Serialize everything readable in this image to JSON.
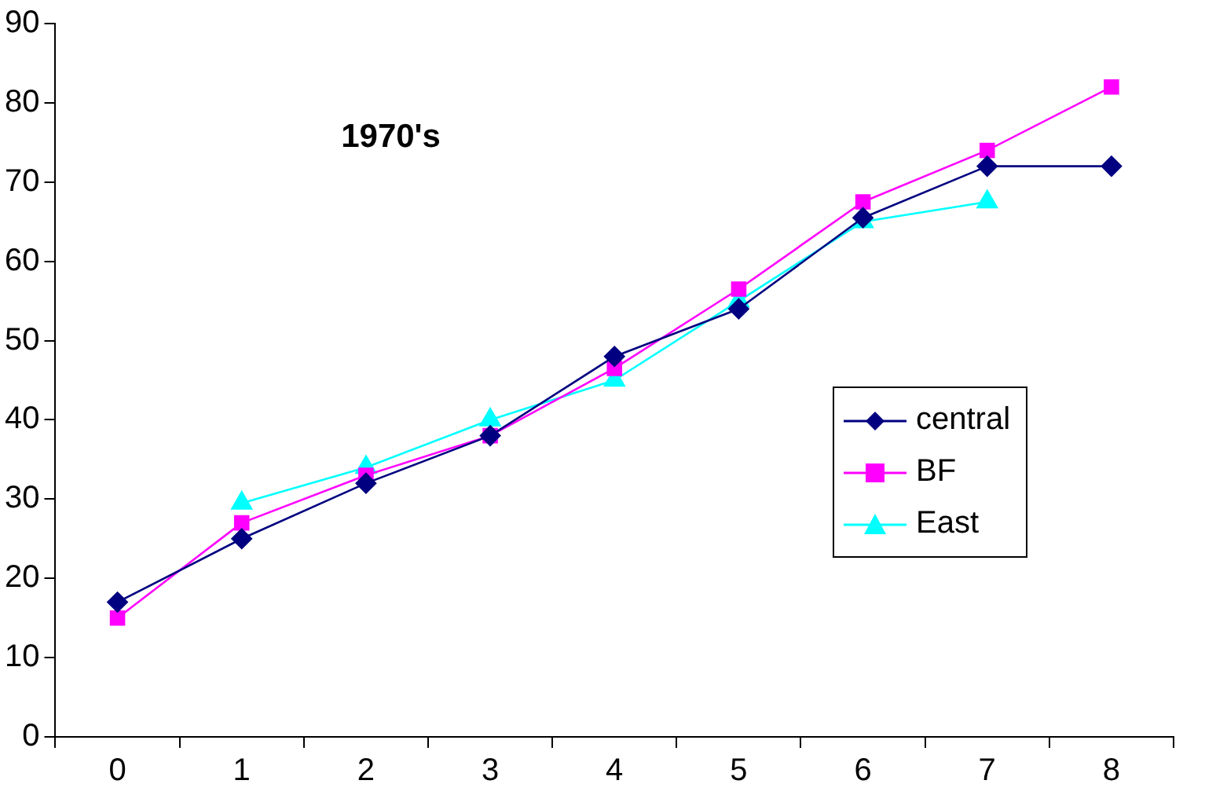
{
  "chart_data": {
    "type": "line",
    "title": "1970's",
    "categories": [
      "0",
      "1",
      "2",
      "3",
      "4",
      "5",
      "6",
      "7",
      "8"
    ],
    "series": [
      {
        "name": "central",
        "color": "#000080",
        "marker": "diamond",
        "values": [
          17,
          25,
          32,
          38,
          48,
          54,
          65.5,
          72,
          72
        ]
      },
      {
        "name": "BF",
        "color": "#ff00ff",
        "marker": "square",
        "values": [
          15,
          27,
          33,
          38,
          46.5,
          56.5,
          67.5,
          74,
          82
        ]
      },
      {
        "name": "East",
        "color": "#00ffff",
        "marker": "triangle",
        "values": [
          null,
          29.5,
          34,
          40,
          45,
          55,
          65,
          67.5,
          null
        ]
      }
    ],
    "ylim": [
      0,
      90
    ],
    "yticks": [
      0,
      10,
      20,
      30,
      40,
      50,
      60,
      70,
      80,
      90
    ],
    "grid": false,
    "legend": "right"
  }
}
